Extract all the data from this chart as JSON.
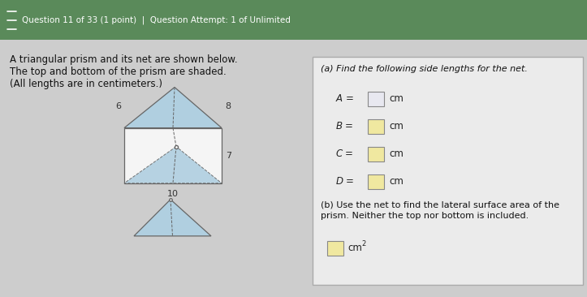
{
  "bg_top_color": "#5a8a5a",
  "bg_body_color": "#c8c8c8",
  "body_light_color": "#e0e0e0",
  "header_text": "Question 11 of 33 (1 point)  |  Question Attempt: 1 of Unlimited",
  "header_text_color": "#ffffff",
  "title_line1": "A triangular prism and its net are shown below.",
  "title_line2": "The top and bottom of the prism are shaded.",
  "title_line3": "(All lengths are in centimeters.)",
  "prism_label_6": "6",
  "prism_label_8": "8",
  "prism_label_7": "7",
  "prism_label_10": "10",
  "triangle_fill": "#b0cfe0",
  "rect_fill": "#f0f0f0",
  "right_panel_bg": "#eeeeee",
  "right_panel_border": "#aaaaaa",
  "part_a_text": "(a) Find the following side lengths for the net.",
  "A_label": "A",
  "B_label": "B",
  "C_label": "C",
  "D_label": "D",
  "cm_label": "cm",
  "part_b_line1": "(b) Use the net to find the lateral surface area of the",
  "part_b_line2": "prism. Neither the top nor bottom is included.",
  "cm2_label": "cm",
  "input_box_color_A": "#e8e8f0",
  "input_box_color_BCD": "#f0e8a0",
  "input_box_border": "#999999"
}
